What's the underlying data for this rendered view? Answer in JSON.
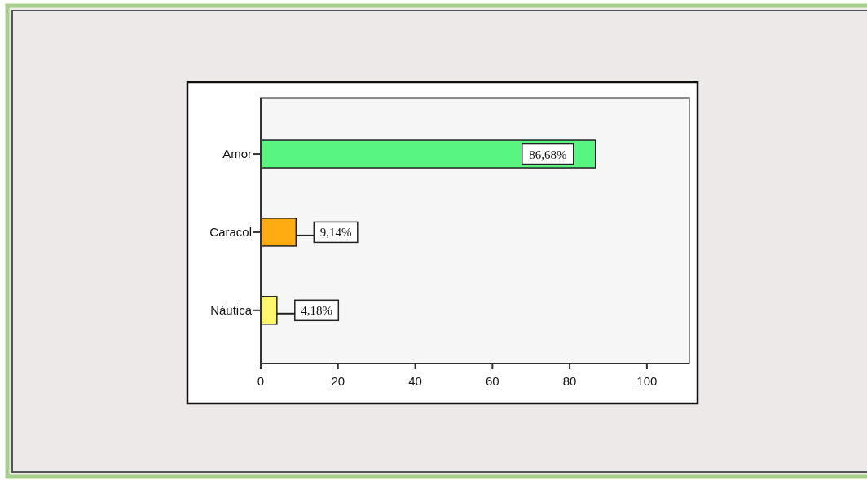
{
  "chart_data": {
    "type": "bar",
    "orientation": "horizontal",
    "categories": [
      "Amor",
      "Caracol",
      "Náutica"
    ],
    "values": [
      86.68,
      9.14,
      4.18
    ],
    "colors": [
      "#58f580",
      "#ffab12",
      "#fff66e"
    ],
    "value_labels": [
      "86,68%",
      "9,14%",
      "4,18%"
    ],
    "xlim": [
      0,
      111
    ],
    "xticks": [
      0,
      20,
      40,
      60,
      80,
      100
    ]
  }
}
